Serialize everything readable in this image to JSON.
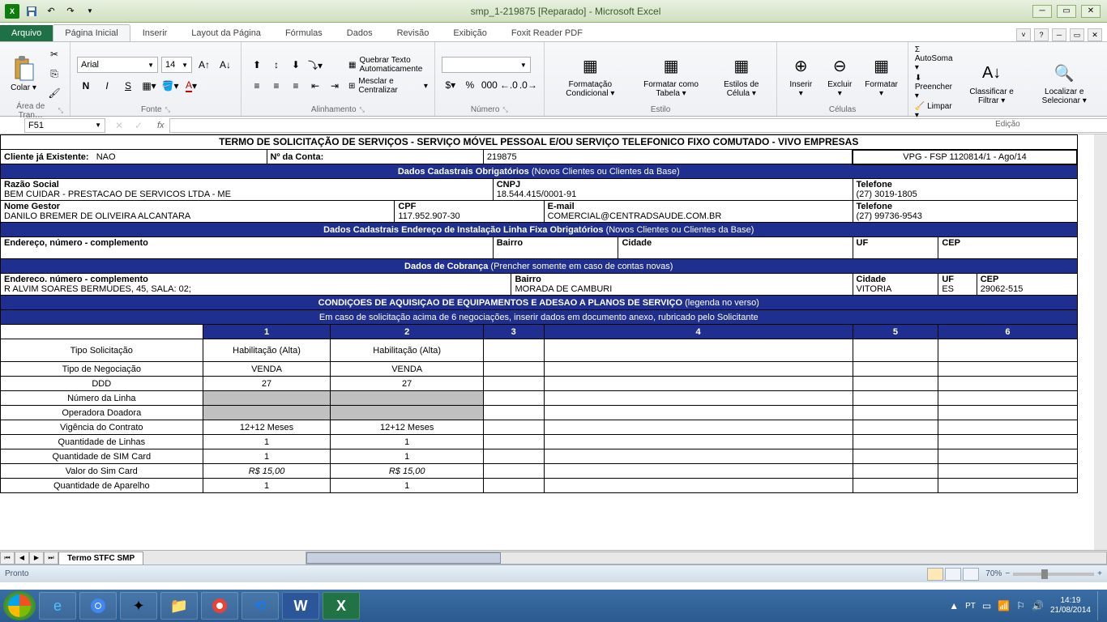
{
  "app": {
    "title": "smp_1-219875 [Reparado]  -  Microsoft Excel"
  },
  "ribbon": {
    "file": "Arquivo",
    "tabs": [
      "Página Inicial",
      "Inserir",
      "Layout da Página",
      "Fórmulas",
      "Dados",
      "Revisão",
      "Exibição",
      "Foxit Reader PDF"
    ],
    "active_tab": 0,
    "groups": {
      "clipboard": {
        "label": "Área de Tran…",
        "paste": "Colar"
      },
      "font": {
        "label": "Fonte",
        "name": "Arial",
        "size": "14"
      },
      "alignment": {
        "label": "Alinhamento",
        "wrap": "Quebrar Texto Automaticamente",
        "merge": "Mesclar e Centralizar"
      },
      "number": {
        "label": "Número"
      },
      "styles": {
        "label": "Estilo",
        "cond": "Formatação Condicional",
        "table": "Formatar como Tabela",
        "cell": "Estilos de Célula"
      },
      "cells": {
        "label": "Células",
        "insert": "Inserir",
        "delete": "Excluir",
        "format": "Formatar"
      },
      "editing": {
        "label": "Edição",
        "autosum": "AutoSoma",
        "fill": "Preencher",
        "clear": "Limpar",
        "sort": "Classificar e Filtrar",
        "find": "Localizar e Selecionar"
      }
    }
  },
  "formula": {
    "name_box": "F51",
    "fx": "fx"
  },
  "doc": {
    "title": "TERMO DE SOLICITAÇÃO DE SERVIÇOS - SERVIÇO MÓVEL PESSOAL E/OU SERVIÇO TELEFONICO FIXO COMUTADO - VIVO EMPRESAS",
    "cliente_existente_lbl": "Cliente já Existente:",
    "cliente_existente_val": "NAO",
    "conta_lbl": "Nº da Conta:",
    "conta_val": "219875",
    "ref": "VPG - FSP 1120814/1 - Ago/14",
    "sec1_hdr": "Dados Cadastrais Obrigatórios",
    "sec1_paren": "(Novos  Clientes ou Clientes da Base)",
    "razao_lbl": "Razão Social",
    "razao_val": "BEM CUIDAR - PRESTACAO DE SERVICOS LTDA - ME",
    "cnpj_lbl": "CNPJ",
    "cnpj_val": "18.544.415/0001-91",
    "tel1_lbl": "Telefone",
    "tel1_val": "(27) 3019-1805",
    "gestor_lbl": "Nome Gestor",
    "gestor_val": "DANILO BREMER DE OLIVEIRA ALCANTARA",
    "cpf_lbl": "CPF",
    "cpf_val": "117.952.907-30",
    "email_lbl": "E-mail",
    "email_val": "COMERCIAL@CENTRADSAUDE.COM.BR",
    "tel2_lbl": "Telefone",
    "tel2_val": "(27) 99736-9543",
    "sec2_hdr": "Dados Cadastrais Endereço de Instalação Linha Fixa  Obrigatórios",
    "sec2_paren": "(Novos Clientes ou Clientes da Base)",
    "end_lbl": "Endereço,  número - complemento",
    "bairro_lbl": "Bairro",
    "cidade_lbl": "Cidade",
    "uf_lbl": "UF",
    "cep_lbl": "CEP",
    "sec3_hdr": "Dados de Cobrança",
    "sec3_paren": "(Prencher somente em caso de contas novas)",
    "end2_lbl": "Endereco.  número - complemento",
    "end2_val": "R ALVIM SOARES BERMUDES, 45, SALA: 02;",
    "bairro2_val": "MORADA DE CAMBURI",
    "cidade2_val": "VITORIA",
    "uf2_val": "ES",
    "cep2_val": "29062-515",
    "sec4_hdr": "CONDIÇOES DE AQUISIÇAO DE EQUIPAMENTOS E ADESAO A PLANOS DE SERVIÇO",
    "sec4_paren": "(legenda no verso)",
    "sec4_note": "Em caso de solicitação acima de 6 negociações, inserir dados em documento anexo, rubricado pelo Solicitante",
    "col_nums": [
      "1",
      "2",
      "3",
      "4",
      "5",
      "6"
    ],
    "rows": [
      {
        "label": "Tipo Solicitação",
        "vals": [
          "Habilitação (Alta)",
          "Habilitação (Alta)",
          "",
          "",
          "",
          ""
        ],
        "tall": true
      },
      {
        "label": "Tipo de Negociação",
        "vals": [
          "VENDA",
          "VENDA",
          "",
          "",
          "",
          ""
        ]
      },
      {
        "label": "DDD",
        "vals": [
          "27",
          "27",
          "",
          "",
          "",
          ""
        ]
      },
      {
        "label": "Número da Linha",
        "vals": [
          "",
          "",
          "",
          "",
          "",
          ""
        ],
        "grey": [
          0,
          1
        ]
      },
      {
        "label": "Operadora Doadora",
        "vals": [
          "",
          "",
          "",
          "",
          "",
          ""
        ],
        "grey": [
          0,
          1
        ]
      },
      {
        "label": "Vigência do Contrato",
        "vals": [
          "12+12 Meses",
          "12+12 Meses",
          "",
          "",
          "",
          ""
        ]
      },
      {
        "label": "Quantidade de Linhas",
        "vals": [
          "1",
          "1",
          "",
          "",
          "",
          ""
        ]
      },
      {
        "label": "Quantidade de SIM Card",
        "vals": [
          "1",
          "1",
          "",
          "",
          "",
          ""
        ]
      },
      {
        "label": "Valor do Sim Card",
        "vals": [
          "R$ 15,00",
          "R$ 15,00",
          "",
          "",
          "",
          ""
        ],
        "italic": true
      },
      {
        "label": "Quantidade de Aparelho",
        "vals": [
          "1",
          "1",
          "",
          "",
          "",
          ""
        ]
      }
    ]
  },
  "sheet_tab": "Termo STFC SMP",
  "status": {
    "ready": "Pronto",
    "zoom": "70%"
  },
  "taskbar": {
    "lang": "PT",
    "time": "14:19",
    "date": "21/08/2014"
  },
  "colors": {
    "section_bg": "#1f2f8f",
    "titlebar_bg": "#d8e8c8",
    "ribbon_bg": "#f0f2f5",
    "taskbar_bg": "#2a5a8f"
  }
}
